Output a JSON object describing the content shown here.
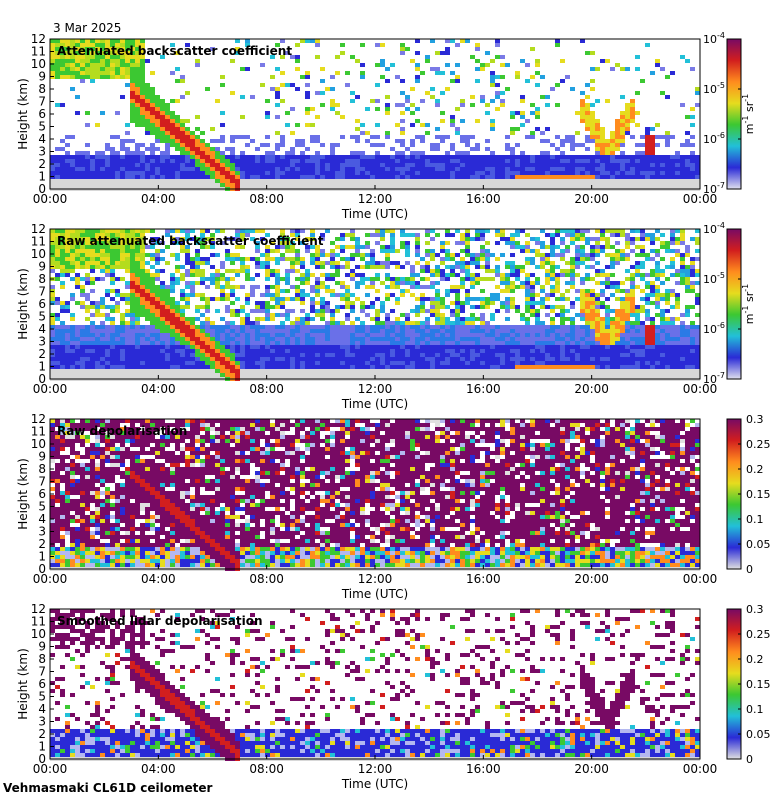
{
  "header": {
    "date": "3 Mar 2025"
  },
  "footer": {
    "instrument": "Vehmasmaki CL61D ceilometer"
  },
  "colors": {
    "background_low": "#d8d8d8",
    "blue": "#2a2ad6",
    "cyan": "#22c0d8",
    "green": "#3cc832",
    "yellow": "#e6dc1e",
    "orange": "#ff8c1e",
    "red": "#d21e1e",
    "purple": "#780a64"
  },
  "chart_data": [
    {
      "type": "heatmap",
      "title": "Attenuated backscatter coefficient",
      "xlabel": "Time (UTC)",
      "ylabel": "Height (km)",
      "xticks": [
        "00:00",
        "04:00",
        "08:00",
        "12:00",
        "16:00",
        "20:00",
        "00:00"
      ],
      "xlim": [
        0,
        24
      ],
      "ylim": [
        0,
        12
      ],
      "yticks": [
        "0",
        "1",
        "2",
        "3",
        "4",
        "5",
        "6",
        "7",
        "8",
        "9",
        "10",
        "11",
        "12"
      ],
      "colorbar": {
        "scale": "log",
        "ticks": [
          "10-7",
          "10-6",
          "10-5",
          "10-4"
        ],
        "label": "m-1 sr-1",
        "label_base": "m",
        "label_exp1": "-1",
        "label_mid": " sr",
        "label_exp2": "-1",
        "tick_base": "10",
        "tick_exps": [
          "-7",
          "-6",
          "-5",
          "-4"
        ],
        "range": [
          1e-07,
          0.0001
        ]
      }
    },
    {
      "type": "heatmap",
      "title": "Raw attenuated backscatter coefficient",
      "xlabel": "Time (UTC)",
      "ylabel": "Height (km)",
      "xticks": [
        "00:00",
        "04:00",
        "08:00",
        "12:00",
        "16:00",
        "20:00",
        "00:00"
      ],
      "xlim": [
        0,
        24
      ],
      "ylim": [
        0,
        12
      ],
      "yticks": [
        "0",
        "1",
        "2",
        "3",
        "4",
        "5",
        "6",
        "7",
        "8",
        "9",
        "10",
        "11",
        "12"
      ],
      "colorbar": {
        "scale": "log",
        "ticks": [
          "10-7",
          "10-6",
          "10-5",
          "10-4"
        ],
        "label": "m-1 sr-1",
        "label_base": "m",
        "label_exp1": "-1",
        "label_mid": " sr",
        "label_exp2": "-1",
        "tick_base": "10",
        "tick_exps": [
          "-7",
          "-6",
          "-5",
          "-4"
        ],
        "range": [
          1e-07,
          0.0001
        ]
      }
    },
    {
      "type": "heatmap",
      "title": "Raw depolarisation",
      "xlabel": "Time (UTC)",
      "ylabel": "Height (km)",
      "xticks": [
        "00:00",
        "04:00",
        "08:00",
        "12:00",
        "16:00",
        "20:00",
        "00:00"
      ],
      "xlim": [
        0,
        24
      ],
      "ylim": [
        0,
        12
      ],
      "yticks": [
        "0",
        "1",
        "2",
        "3",
        "4",
        "5",
        "6",
        "7",
        "8",
        "9",
        "10",
        "11",
        "12"
      ],
      "colorbar": {
        "scale": "linear",
        "ticks": [
          "0",
          "0.05",
          "0.1",
          "0.15",
          "0.2",
          "0.25",
          "0.3"
        ],
        "range": [
          0,
          0.3
        ]
      }
    },
    {
      "type": "heatmap",
      "title": "Smoothed lidar depolarisation",
      "xlabel": "Time (UTC)",
      "ylabel": "Height (km)",
      "xticks": [
        "00:00",
        "04:00",
        "08:00",
        "12:00",
        "16:00",
        "20:00",
        "00:00"
      ],
      "xlim": [
        0,
        24
      ],
      "ylim": [
        0,
        12
      ],
      "yticks": [
        "0",
        "1",
        "2",
        "3",
        "4",
        "5",
        "6",
        "7",
        "8",
        "9",
        "10",
        "11",
        "12"
      ],
      "colorbar": {
        "scale": "linear",
        "ticks": [
          "0",
          "0.05",
          "0.1",
          "0.15",
          "0.2",
          "0.25",
          "0.3"
        ],
        "range": [
          0,
          0.3
        ]
      }
    }
  ]
}
